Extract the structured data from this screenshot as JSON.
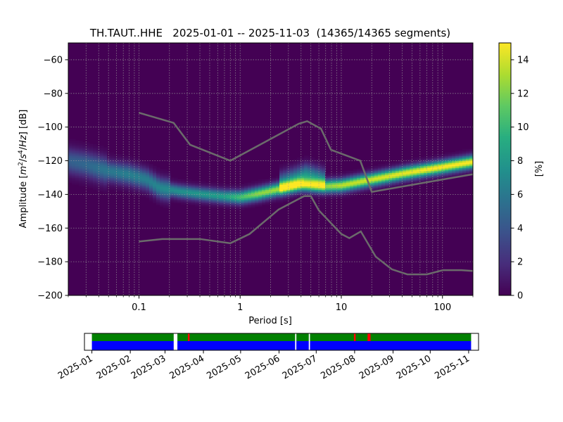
{
  "title": "TH.TAUT..HHE   2025-01-01 -- 2025-11-03  (14365/14365 segments)",
  "chart_data": [
    {
      "type": "heatmap",
      "title": "TH.TAUT..HHE   2025-01-01 -- 2025-11-03  (14365/14365 segments)",
      "xlabel": "Period [s]",
      "ylabel_parts": {
        "pre": "Amplitude [",
        "m": "m",
        "sup2": "2",
        "mid": "/",
        "s": "s",
        "sup4": "4",
        "slash": "/",
        "hz": "Hz",
        "post": "] [dB]"
      },
      "x_scale": "log",
      "xlim": [
        0.02,
        200
      ],
      "ylim": [
        -200,
        -50
      ],
      "x_ticks": [
        0.1,
        1,
        10,
        100
      ],
      "x_tick_labels": [
        "0.1",
        "1",
        "10",
        "100"
      ],
      "y_ticks": [
        -200,
        -180,
        -160,
        -140,
        -120,
        -100,
        -80,
        -60
      ],
      "y_tick_labels": [
        "−200",
        "−180",
        "−160",
        "−140",
        "−120",
        "−100",
        "−80",
        "−60"
      ],
      "grid": true,
      "colormap": "viridis",
      "colorbar": {
        "label": "[%]",
        "range": [
          0,
          15
        ],
        "ticks": [
          0,
          2,
          4,
          6,
          8,
          10,
          12,
          14
        ],
        "tick_labels": [
          "0",
          "2",
          "4",
          "6",
          "8",
          "10",
          "12",
          "14"
        ]
      },
      "ridge_modes": [
        {
          "period": 0.02,
          "db": -120,
          "pct": 4.5
        },
        {
          "period": 0.03,
          "db": -122,
          "pct": 5.0
        },
        {
          "period": 0.05,
          "db": -126,
          "pct": 6.0
        },
        {
          "period": 0.08,
          "db": -128,
          "pct": 6.5
        },
        {
          "period": 0.12,
          "db": -131,
          "pct": 6.5
        },
        {
          "period": 0.16,
          "db": -136,
          "pct": 7.0
        },
        {
          "period": 0.25,
          "db": -138,
          "pct": 7.5
        },
        {
          "period": 0.4,
          "db": -139.5,
          "pct": 8.0
        },
        {
          "period": 0.7,
          "db": -141,
          "pct": 8.5
        },
        {
          "period": 1.0,
          "db": -141.5,
          "pct": 10.5
        },
        {
          "period": 1.5,
          "db": -139.5,
          "pct": 12.5
        },
        {
          "period": 2.5,
          "db": -136.5,
          "pct": 13.0
        },
        {
          "period": 4.0,
          "db": -134,
          "pct": 13.0
        },
        {
          "period": 7.0,
          "db": -135,
          "pct": 12.5
        },
        {
          "period": 10.0,
          "db": -134.5,
          "pct": 13.5
        },
        {
          "period": 20.0,
          "db": -131,
          "pct": 14.0
        },
        {
          "period": 40.0,
          "db": -127.5,
          "pct": 14.5
        },
        {
          "period": 80.0,
          "db": -124.5,
          "pct": 15.0
        },
        {
          "period": 200.0,
          "db": -120.5,
          "pct": 15.0
        }
      ],
      "secondary_mode": [
        {
          "period": 2.5,
          "db": -133,
          "pct": 6.0
        },
        {
          "period": 4.5,
          "db": -128,
          "pct": 7.5
        },
        {
          "period": 7.0,
          "db": -131,
          "pct": 6.0
        }
      ],
      "noise_model_high": [
        {
          "period": 0.1,
          "db": -91.5
        },
        {
          "period": 0.22,
          "db": -97.5
        },
        {
          "period": 0.32,
          "db": -110.5
        },
        {
          "period": 0.8,
          "db": -120
        },
        {
          "period": 3.8,
          "db": -98
        },
        {
          "period": 4.6,
          "db": -96.5
        },
        {
          "period": 6.3,
          "db": -101
        },
        {
          "period": 7.9,
          "db": -113.5
        },
        {
          "period": 15.4,
          "db": -120
        },
        {
          "period": 20.0,
          "db": -138.5
        },
        {
          "period": 200.0,
          "db": -128
        }
      ],
      "noise_model_low": [
        {
          "period": 0.1,
          "db": -168
        },
        {
          "period": 0.17,
          "db": -166.5
        },
        {
          "period": 0.4,
          "db": -166.5
        },
        {
          "period": 0.8,
          "db": -169
        },
        {
          "period": 1.24,
          "db": -163.5
        },
        {
          "period": 2.4,
          "db": -149
        },
        {
          "period": 4.3,
          "db": -141
        },
        {
          "period": 5.0,
          "db": -141
        },
        {
          "period": 6.0,
          "db": -149.5
        },
        {
          "period": 10.0,
          "db": -163.5
        },
        {
          "period": 12.0,
          "db": -166
        },
        {
          "period": 15.6,
          "db": -162
        },
        {
          "period": 21.9,
          "db": -177
        },
        {
          "period": 31.6,
          "db": -184.5
        },
        {
          "period": 45.0,
          "db": -187.5
        },
        {
          "period": 70.0,
          "db": -187.5
        },
        {
          "period": 101.0,
          "db": -185
        },
        {
          "period": 154.0,
          "db": -185
        },
        {
          "period": 200.0,
          "db": -185.5
        }
      ]
    },
    {
      "type": "timeline",
      "xlim": [
        "2024-12-26",
        "2025-11-09"
      ],
      "tick_labels": [
        "2025-01",
        "2025-02",
        "2025-03",
        "2025-04",
        "2025-05",
        "2025-06",
        "2025-07",
        "2025-08",
        "2025-09",
        "2025-10",
        "2025-11"
      ],
      "tick_dates": [
        "2025-01-01",
        "2025-02-01",
        "2025-03-01",
        "2025-04-01",
        "2025-05-01",
        "2025-06-01",
        "2025-07-01",
        "2025-08-01",
        "2025-09-01",
        "2025-10-01",
        "2025-11-01"
      ],
      "data_coverage": [
        {
          "start": "2025-01-01",
          "end": "2025-03-08"
        },
        {
          "start": "2025-03-11",
          "end": "2025-06-14"
        },
        {
          "start": "2025-06-15",
          "end": "2025-06-25"
        },
        {
          "start": "2025-06-26",
          "end": "2025-11-03"
        }
      ],
      "psd_coverage": [
        {
          "start": "2025-01-01",
          "end": "2025-03-08"
        },
        {
          "start": "2025-03-11",
          "end": "2025-06-14"
        },
        {
          "start": "2025-06-15",
          "end": "2025-06-25"
        },
        {
          "start": "2025-06-26",
          "end": "2025-11-03"
        }
      ],
      "gaps": [
        "2025-03-20",
        "2025-08-01",
        "2025-08-12",
        "2025-08-13"
      ],
      "colors": {
        "data": "#0000ff",
        "psd": "#008000",
        "gap": "#ff0000"
      }
    }
  ]
}
